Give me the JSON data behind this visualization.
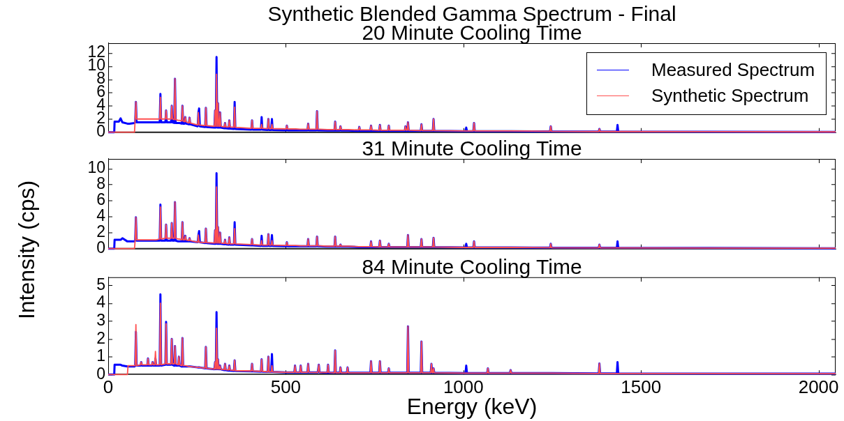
{
  "chart_data": [
    {
      "type": "line",
      "title": "Synthetic Blended Gamma Spectrum - Final",
      "subtitle": "20 Minute Cooling Time",
      "xlim": [
        0,
        2048
      ],
      "xticks": [
        0,
        500,
        1000,
        1500,
        2000
      ],
      "ylim": [
        0,
        13.5
      ],
      "yticks": [
        0,
        2,
        4,
        6,
        8,
        10,
        12
      ],
      "tick_labels": "y",
      "legend": "top right",
      "x": [
        0,
        17,
        18,
        30,
        35,
        40,
        54,
        56,
        60,
        74,
        76,
        78,
        80,
        91,
        93,
        95,
        110,
        112,
        114,
        123,
        125,
        127,
        131,
        133,
        135,
        145,
        147,
        149,
        161,
        163,
        165,
        177,
        179,
        181,
        186,
        188,
        190,
        197,
        199,
        201,
        207,
        209,
        211,
        215,
        217,
        219,
        227,
        229,
        231,
        252,
        254,
        256,
        258,
        273,
        275,
        277,
        299,
        301,
        303,
        305,
        307,
        309,
        311,
        313,
        315,
        317,
        327,
        329,
        331,
        339,
        341,
        343,
        354,
        356,
        358,
        403,
        405,
        407,
        430,
        432,
        434,
        449,
        451,
        453,
        459,
        461,
        463,
        501,
        503,
        505,
        524,
        526,
        528,
        540,
        542,
        544,
        561,
        563,
        565,
        586,
        588,
        590,
        593,
        595,
        617,
        619,
        621,
        637,
        639,
        641,
        652,
        654,
        656,
        672,
        674,
        676,
        705,
        707,
        709,
        738,
        740,
        742,
        763,
        765,
        767,
        788,
        790,
        792,
        835,
        837,
        839,
        842,
        844,
        846,
        880,
        882,
        884,
        908,
        910,
        912,
        914,
        916,
        918,
        1006,
        1008,
        1010,
        1028,
        1030,
        1032,
        1067,
        1069,
        1071,
        1131,
        1133,
        1135,
        1244,
        1246,
        1248,
        1381,
        1383,
        1385,
        1432,
        1434,
        1436,
        2048
      ],
      "series": [
        {
          "name": "Measured Spectrum",
          "color": "#0000ff",
          "values": [
            0,
            0,
            1.6,
            1.6,
            2.1,
            1.5,
            1.3,
            1.3,
            1.3,
            1.4,
            1.5,
            4.6,
            1.5,
            1.5,
            1.5,
            1.5,
            1.5,
            1.5,
            1.5,
            1.5,
            1.5,
            1.5,
            1.5,
            1.5,
            1.5,
            1.5,
            5.8,
            1.5,
            1.5,
            3.3,
            1.5,
            1.5,
            4.0,
            1.5,
            1.4,
            8.1,
            1.4,
            1.4,
            1.4,
            1.4,
            1.3,
            4.0,
            1.3,
            1.3,
            2.3,
            1.3,
            1.2,
            2.2,
            1.2,
            0.9,
            3.0,
            3.6,
            0.9,
            0.8,
            3.7,
            0.8,
            0.7,
            3.3,
            0.7,
            11.4,
            0.7,
            4.4,
            0.7,
            0.7,
            3.0,
            0.7,
            0.6,
            1.4,
            0.6,
            0.55,
            1.8,
            0.55,
            0.5,
            4.6,
            0.5,
            0.4,
            1.8,
            0.4,
            0.4,
            2.3,
            0.4,
            0.35,
            2.0,
            0.35,
            0.35,
            2.0,
            0.35,
            0.3,
            1.0,
            0.3,
            0.3,
            0.3,
            0.3,
            0.3,
            0.3,
            0.3,
            0.3,
            1.3,
            0.3,
            0.3,
            3.2,
            0.3,
            0.3,
            0.3,
            0.25,
            0.25,
            0.25,
            0.25,
            1.6,
            0.25,
            0.25,
            0.9,
            0.25,
            0.25,
            0.25,
            0.25,
            0.2,
            0.8,
            0.2,
            0.2,
            1.0,
            0.2,
            0.2,
            1.1,
            0.2,
            0.2,
            1.0,
            0.2,
            0.2,
            0.9,
            0.2,
            0.2,
            1.5,
            0.2,
            0.2,
            1.2,
            0.2,
            0.2,
            0.2,
            0.2,
            0.2,
            2.0,
            0.2,
            0.15,
            0.7,
            0.15,
            0.15,
            1.4,
            0.15,
            0.15,
            0.15,
            0.15,
            0.15,
            0.15,
            0.15,
            0.12,
            0.9,
            0.12,
            0.1,
            0.5,
            0.1,
            0.1,
            1.1,
            0.1,
            0.05
          ]
        },
        {
          "name": "Synthetic Spectrum",
          "color": "#ff5050",
          "values": [
            0,
            0,
            0,
            0,
            0,
            0,
            0,
            0,
            0,
            0,
            2.0,
            4.6,
            2.0,
            2.0,
            2.0,
            2.0,
            2.0,
            2.0,
            2.0,
            2.0,
            2.0,
            2.0,
            2.0,
            2.0,
            2.0,
            2.0,
            5.3,
            2.0,
            2.0,
            3.3,
            2.0,
            2.0,
            4.0,
            2.0,
            1.9,
            8.1,
            1.9,
            1.8,
            1.8,
            1.8,
            1.7,
            4.0,
            1.7,
            1.6,
            2.3,
            1.6,
            1.4,
            2.2,
            1.4,
            1.1,
            3.0,
            1.1,
            1.1,
            1.0,
            3.7,
            1.0,
            0.9,
            3.3,
            0.9,
            8.8,
            0.9,
            4.4,
            0.9,
            0.9,
            3.0,
            0.9,
            0.8,
            1.4,
            0.8,
            0.8,
            1.8,
            0.8,
            0.75,
            3.8,
            0.75,
            0.6,
            1.8,
            0.6,
            0.6,
            1.2,
            0.6,
            0.55,
            2.0,
            0.55,
            0.55,
            1.2,
            0.55,
            0.5,
            1.0,
            0.5,
            0.5,
            0.5,
            0.5,
            0.45,
            0.45,
            0.45,
            0.45,
            1.3,
            0.45,
            0.45,
            3.2,
            0.45,
            0.45,
            0.45,
            0.4,
            0.4,
            0.4,
            0.4,
            1.6,
            0.4,
            0.4,
            0.9,
            0.4,
            0.4,
            0.4,
            0.4,
            0.35,
            0.8,
            0.35,
            0.35,
            1.0,
            0.35,
            0.3,
            1.1,
            0.3,
            0.3,
            1.0,
            0.3,
            0.3,
            0.9,
            0.3,
            0.3,
            1.5,
            0.3,
            0.25,
            1.2,
            0.25,
            0.25,
            0.25,
            0.25,
            0.25,
            2.0,
            0.25,
            0.2,
            0.2,
            0.2,
            0.2,
            1.4,
            0.2,
            0.2,
            0.2,
            0.2,
            0.2,
            0.2,
            0.2,
            0.15,
            0.9,
            0.15,
            0.1,
            0.5,
            0.1,
            0.1,
            0.1,
            0.1,
            0.05
          ]
        }
      ]
    },
    {
      "type": "line",
      "title": "31 Minute Cooling Time",
      "ylabel": "Intensity (cps)",
      "xlim": [
        0,
        2048
      ],
      "xticks": [
        0,
        500,
        1000,
        1500,
        2000
      ],
      "ylim": [
        0,
        11.2
      ],
      "yticks": [
        0,
        2,
        4,
        6,
        8,
        10
      ],
      "tick_labels": "y",
      "x": [
        0,
        17,
        18,
        30,
        35,
        40,
        54,
        56,
        60,
        74,
        76,
        78,
        80,
        91,
        93,
        95,
        110,
        112,
        114,
        123,
        125,
        127,
        131,
        133,
        135,
        145,
        147,
        149,
        161,
        163,
        165,
        177,
        179,
        181,
        186,
        188,
        190,
        197,
        199,
        201,
        207,
        209,
        211,
        215,
        217,
        219,
        227,
        229,
        231,
        252,
        254,
        256,
        258,
        273,
        275,
        277,
        299,
        301,
        303,
        305,
        307,
        309,
        311,
        313,
        315,
        317,
        327,
        329,
        331,
        339,
        341,
        343,
        354,
        356,
        358,
        403,
        405,
        407,
        430,
        432,
        434,
        449,
        451,
        453,
        459,
        461,
        463,
        501,
        503,
        505,
        524,
        526,
        528,
        540,
        542,
        544,
        561,
        563,
        565,
        586,
        588,
        590,
        593,
        595,
        617,
        619,
        621,
        637,
        639,
        641,
        652,
        654,
        656,
        672,
        674,
        676,
        705,
        707,
        709,
        738,
        740,
        742,
        763,
        765,
        767,
        788,
        790,
        792,
        835,
        837,
        839,
        842,
        844,
        846,
        880,
        882,
        884,
        908,
        910,
        912,
        914,
        916,
        918,
        1006,
        1008,
        1010,
        1028,
        1030,
        1032,
        1067,
        1069,
        1071,
        1131,
        1133,
        1135,
        1244,
        1246,
        1248,
        1381,
        1383,
        1385,
        1432,
        1434,
        1436,
        2048
      ],
      "series": [
        {
          "color": "#0000ff",
          "values": [
            0,
            0,
            1.1,
            1.1,
            1.1,
            1.3,
            0.9,
            0.9,
            0.9,
            0.9,
            1.0,
            3.9,
            1.0,
            1.0,
            1.0,
            1.0,
            1.0,
            1.0,
            1.0,
            1.0,
            1.0,
            1.0,
            1.0,
            1.0,
            1.0,
            1.0,
            5.5,
            1.0,
            1.0,
            3.0,
            1.0,
            1.0,
            3.2,
            1.0,
            1.0,
            5.8,
            1.0,
            0.9,
            0.9,
            0.9,
            0.9,
            3.3,
            0.9,
            0.9,
            1.6,
            0.9,
            0.9,
            1.3,
            0.9,
            0.8,
            1.7,
            2.2,
            0.8,
            0.7,
            2.5,
            0.7,
            0.6,
            2.3,
            0.6,
            9.4,
            0.6,
            2.7,
            0.6,
            0.6,
            2.0,
            0.6,
            0.55,
            1.1,
            0.55,
            0.5,
            1.4,
            0.5,
            0.5,
            3.3,
            0.5,
            0.4,
            1.2,
            0.4,
            0.35,
            1.6,
            0.35,
            0.35,
            1.8,
            0.35,
            0.35,
            1.7,
            0.35,
            0.3,
            0.8,
            0.3,
            0.3,
            0.3,
            0.3,
            0.3,
            0.3,
            0.3,
            0.3,
            1.2,
            0.3,
            0.3,
            1.5,
            0.3,
            0.3,
            0.3,
            0.25,
            0.25,
            0.25,
            0.25,
            1.5,
            0.25,
            0.25,
            0.5,
            0.25,
            0.25,
            0.25,
            0.25,
            0.2,
            0.2,
            0.2,
            0.2,
            0.9,
            0.2,
            0.2,
            1.0,
            0.2,
            0.2,
            0.6,
            0.2,
            0.2,
            0.2,
            0.2,
            0.2,
            1.7,
            0.2,
            0.2,
            1.2,
            0.2,
            0.2,
            0.2,
            0.2,
            0.2,
            1.35,
            0.2,
            0.15,
            0.6,
            0.15,
            0.15,
            0.9,
            0.15,
            0.15,
            0.15,
            0.15,
            0.15,
            0.15,
            0.15,
            0.12,
            0.6,
            0.12,
            0.1,
            0.5,
            0.1,
            0.1,
            0.9,
            0.1,
            0.05
          ]
        },
        {
          "color": "#ff5050",
          "values": [
            0,
            0,
            0,
            0,
            0,
            0,
            0,
            0,
            0,
            0,
            1.1,
            3.9,
            1.1,
            1.1,
            1.1,
            1.1,
            1.1,
            1.1,
            1.1,
            1.1,
            1.1,
            1.1,
            1.1,
            1.1,
            1.1,
            1.2,
            5.2,
            1.2,
            1.3,
            3.0,
            1.3,
            1.3,
            3.2,
            1.3,
            1.3,
            5.8,
            1.3,
            1.2,
            1.2,
            1.2,
            1.1,
            3.3,
            1.1,
            1.1,
            1.6,
            1.1,
            1.0,
            1.3,
            1.0,
            0.8,
            1.7,
            0.8,
            0.8,
            0.75,
            2.5,
            0.75,
            0.7,
            2.3,
            0.7,
            7.7,
            0.7,
            2.7,
            0.7,
            0.7,
            2.0,
            0.7,
            0.65,
            1.1,
            0.65,
            0.6,
            1.4,
            0.6,
            0.6,
            2.5,
            0.6,
            0.5,
            1.2,
            0.5,
            0.45,
            1.0,
            0.45,
            0.45,
            1.8,
            0.45,
            0.45,
            1.0,
            0.45,
            0.4,
            0.8,
            0.4,
            0.4,
            0.4,
            0.4,
            0.35,
            0.35,
            0.35,
            0.35,
            1.2,
            0.35,
            0.35,
            1.5,
            0.35,
            0.35,
            0.35,
            0.3,
            0.3,
            0.3,
            0.3,
            1.5,
            0.3,
            0.3,
            0.5,
            0.3,
            0.3,
            0.3,
            0.3,
            0.25,
            0.25,
            0.25,
            0.25,
            0.9,
            0.25,
            0.2,
            1.0,
            0.2,
            0.2,
            0.6,
            0.2,
            0.2,
            0.2,
            0.2,
            0.2,
            1.7,
            0.2,
            0.2,
            1.2,
            0.2,
            0.2,
            0.2,
            0.2,
            0.2,
            1.35,
            0.2,
            0.15,
            0.15,
            0.15,
            0.15,
            0.9,
            0.15,
            0.15,
            0.15,
            0.15,
            0.15,
            0.15,
            0.15,
            0.12,
            0.6,
            0.12,
            0.1,
            0.5,
            0.1,
            0.1,
            0.1,
            0.1,
            0.05
          ]
        }
      ]
    },
    {
      "type": "line",
      "title": "84 Minute Cooling Time",
      "xlabel": "Energy (keV)",
      "xlim": [
        0,
        2048
      ],
      "xticks": [
        0,
        500,
        1000,
        1500,
        2000
      ],
      "ylim": [
        0,
        5.45
      ],
      "yticks": [
        0,
        1,
        2,
        3,
        4,
        5
      ],
      "x": [
        0,
        17,
        18,
        30,
        35,
        40,
        54,
        56,
        60,
        74,
        76,
        78,
        80,
        91,
        93,
        95,
        110,
        112,
        114,
        123,
        125,
        127,
        131,
        133,
        135,
        145,
        147,
        149,
        161,
        163,
        165,
        177,
        179,
        181,
        186,
        188,
        190,
        197,
        199,
        201,
        207,
        209,
        211,
        215,
        217,
        219,
        227,
        229,
        231,
        252,
        254,
        256,
        258,
        273,
        275,
        277,
        299,
        301,
        303,
        305,
        307,
        309,
        311,
        313,
        315,
        317,
        327,
        329,
        331,
        339,
        341,
        343,
        354,
        356,
        358,
        403,
        405,
        407,
        430,
        432,
        434,
        449,
        451,
        453,
        459,
        461,
        463,
        501,
        503,
        505,
        524,
        526,
        528,
        540,
        542,
        544,
        561,
        563,
        565,
        586,
        588,
        590,
        593,
        595,
        617,
        619,
        621,
        637,
        639,
        641,
        652,
        654,
        656,
        672,
        674,
        676,
        705,
        707,
        709,
        738,
        740,
        742,
        763,
        765,
        767,
        788,
        790,
        792,
        835,
        837,
        839,
        842,
        844,
        846,
        880,
        882,
        884,
        908,
        910,
        912,
        914,
        916,
        918,
        1006,
        1008,
        1010,
        1028,
        1030,
        1032,
        1067,
        1069,
        1071,
        1131,
        1133,
        1135,
        1244,
        1246,
        1248,
        1381,
        1383,
        1385,
        1432,
        1434,
        1436,
        2048
      ],
      "series": [
        {
          "color": "#0000ff",
          "values": [
            0,
            0,
            0.55,
            0.55,
            0.55,
            0.5,
            0.45,
            0.45,
            0.45,
            0.45,
            0.5,
            2.4,
            0.5,
            0.5,
            0.7,
            0.5,
            0.5,
            0.9,
            0.5,
            0.5,
            0.7,
            0.5,
            0.5,
            0.9,
            0.5,
            0.5,
            4.5,
            0.5,
            0.55,
            2.95,
            0.55,
            0.55,
            2.0,
            0.55,
            0.5,
            1.6,
            0.5,
            0.5,
            1.0,
            0.5,
            0.45,
            2.05,
            0.45,
            0.45,
            0.45,
            0.45,
            0.45,
            0.45,
            0.45,
            0.4,
            0.4,
            0.4,
            0.4,
            0.35,
            1.55,
            0.35,
            0.3,
            0.7,
            0.3,
            3.5,
            0.3,
            0.85,
            0.3,
            0.3,
            0.5,
            0.3,
            0.25,
            0.6,
            0.25,
            0.22,
            0.5,
            0.22,
            0.2,
            0.8,
            0.2,
            0.18,
            0.6,
            0.18,
            0.16,
            0.85,
            0.16,
            0.15,
            1.0,
            0.15,
            0.15,
            1.15,
            0.15,
            0.12,
            0.12,
            0.12,
            0.12,
            0.5,
            0.12,
            0.12,
            0.5,
            0.12,
            0.12,
            0.6,
            0.12,
            0.12,
            0.12,
            0.12,
            0.55,
            0.12,
            0.1,
            0.55,
            0.1,
            0.1,
            1.35,
            0.1,
            0.1,
            0.4,
            0.1,
            0.1,
            0.4,
            0.1,
            0.1,
            0.1,
            0.1,
            0.1,
            0.75,
            0.1,
            0.1,
            0.75,
            0.1,
            0.1,
            0.35,
            0.1,
            0.1,
            0.1,
            0.1,
            0.1,
            2.7,
            0.1,
            0.1,
            1.85,
            0.1,
            0.1,
            0.6,
            0.1,
            0.1,
            0.35,
            0.1,
            0.08,
            0.5,
            0.08,
            0.08,
            0.08,
            0.08,
            0.08,
            0.35,
            0.08,
            0.08,
            0.25,
            0.08,
            0.08,
            0.08,
            0.08,
            0.06,
            0.62,
            0.06,
            0.06,
            0.7,
            0.06,
            0.05
          ]
        },
        {
          "color": "#ff5050",
          "values": [
            0,
            0,
            0,
            0,
            0,
            0,
            0,
            0.5,
            0.5,
            0.5,
            0.5,
            2.8,
            0.5,
            0.55,
            0.7,
            0.55,
            0.55,
            0.9,
            0.55,
            0.55,
            0.7,
            0.55,
            0.55,
            1.3,
            0.55,
            0.55,
            4.0,
            0.55,
            0.6,
            2.85,
            0.6,
            0.6,
            2.0,
            0.6,
            0.6,
            1.6,
            0.6,
            0.55,
            1.0,
            0.55,
            0.5,
            2.05,
            0.5,
            0.5,
            0.5,
            0.5,
            0.45,
            0.45,
            0.45,
            0.4,
            0.4,
            0.4,
            0.4,
            0.35,
            1.55,
            0.35,
            0.3,
            0.7,
            0.3,
            2.6,
            0.3,
            0.85,
            0.3,
            0.3,
            0.5,
            0.3,
            0.27,
            0.6,
            0.27,
            0.25,
            0.5,
            0.25,
            0.22,
            0.8,
            0.22,
            0.2,
            0.6,
            0.2,
            0.18,
            0.85,
            0.18,
            0.15,
            1.0,
            0.15,
            0.15,
            0.5,
            0.15,
            0.13,
            0.13,
            0.13,
            0.13,
            0.5,
            0.13,
            0.13,
            0.5,
            0.13,
            0.13,
            0.6,
            0.13,
            0.12,
            0.12,
            0.12,
            0.55,
            0.12,
            0.12,
            0.55,
            0.12,
            0.1,
            1.35,
            0.1,
            0.1,
            0.4,
            0.1,
            0.1,
            0.4,
            0.1,
            0.1,
            0.1,
            0.1,
            0.1,
            0.75,
            0.1,
            0.1,
            0.75,
            0.1,
            0.1,
            0.35,
            0.1,
            0.1,
            0.1,
            0.1,
            0.1,
            2.7,
            0.1,
            0.1,
            1.85,
            0.1,
            0.1,
            0.6,
            0.1,
            0.1,
            0.35,
            0.1,
            0.08,
            0.08,
            0.08,
            0.08,
            0.08,
            0.08,
            0.08,
            0.35,
            0.08,
            0.08,
            0.25,
            0.08,
            0.08,
            0.08,
            0.08,
            0.06,
            0.62,
            0.06,
            0.06,
            0.06,
            0.06,
            0.05
          ]
        }
      ]
    }
  ]
}
